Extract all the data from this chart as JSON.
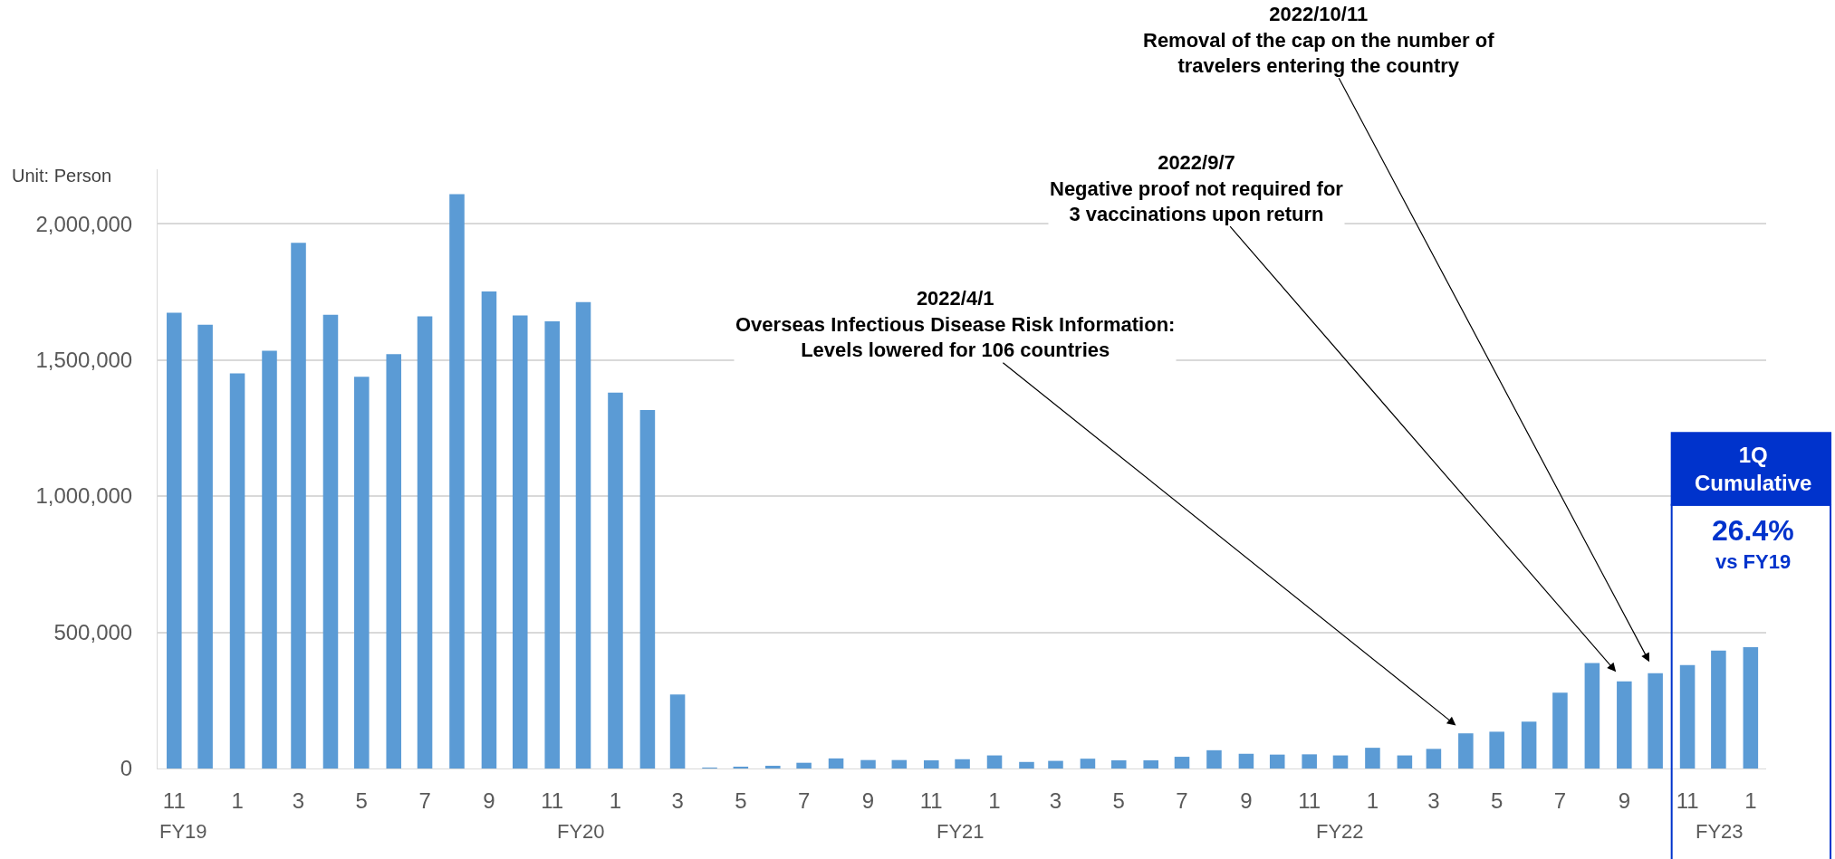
{
  "chart_data": {
    "type": "bar",
    "ylabel": "Unit: Person",
    "x": [
      "2018-11",
      "2018-12",
      "2019-01",
      "2019-02",
      "2019-03",
      "2019-04",
      "2019-05",
      "2019-06",
      "2019-07",
      "2019-08",
      "2019-09",
      "2019-10",
      "2019-11",
      "2019-12",
      "2020-01",
      "2020-02",
      "2020-03",
      "2020-04",
      "2020-05",
      "2020-06",
      "2020-07",
      "2020-08",
      "2020-09",
      "2020-10",
      "2020-11",
      "2020-12",
      "2021-01",
      "2021-02",
      "2021-03",
      "2021-04",
      "2021-05",
      "2021-06",
      "2021-07",
      "2021-08",
      "2021-09",
      "2021-10",
      "2021-11",
      "2021-12",
      "2022-01",
      "2022-02",
      "2022-03",
      "2022-04",
      "2022-05",
      "2022-06",
      "2022-07",
      "2022-08",
      "2022-09",
      "2022-10",
      "2022-11",
      "2022-12",
      "2023-01"
    ],
    "values": [
      1673000,
      1629000,
      1451000,
      1534000,
      1930000,
      1666000,
      1438000,
      1521000,
      1660000,
      2109000,
      1751000,
      1663000,
      1642000,
      1712000,
      1380000,
      1316000,
      272000,
      3000,
      6000,
      10000,
      21000,
      37000,
      31000,
      31000,
      30000,
      34000,
      48000,
      24000,
      28000,
      36000,
      30000,
      30000,
      43000,
      67000,
      54000,
      51000,
      52000,
      48000,
      76000,
      48000,
      72000,
      129000,
      135000,
      172000,
      278000,
      387000,
      320000,
      350000,
      380000,
      433000,
      445000
    ],
    "color": "#5b9bd5",
    "xlim": [
      "2018-10-16",
      "2023-01-16"
    ],
    "xticks": [
      {
        "value": "2018-11",
        "label": "11"
      },
      {
        "value": "2019-01",
        "label": "1"
      },
      {
        "value": "2019-03",
        "label": "3"
      },
      {
        "value": "2019-05",
        "label": "5"
      },
      {
        "value": "2019-07",
        "label": "7"
      },
      {
        "value": "2019-09",
        "label": "9"
      },
      {
        "value": "2019-11",
        "label": "11"
      },
      {
        "value": "2020-01",
        "label": "1"
      },
      {
        "value": "2020-03",
        "label": "3"
      },
      {
        "value": "2020-05",
        "label": "5"
      },
      {
        "value": "2020-07",
        "label": "7"
      },
      {
        "value": "2020-09",
        "label": "9"
      },
      {
        "value": "2020-11",
        "label": "11"
      },
      {
        "value": "2021-01",
        "label": "1"
      },
      {
        "value": "2021-03",
        "label": "3"
      },
      {
        "value": "2021-05",
        "label": "5"
      },
      {
        "value": "2021-07",
        "label": "7"
      },
      {
        "value": "2021-09",
        "label": "9"
      },
      {
        "value": "2021-11",
        "label": "11"
      },
      {
        "value": "2022-01",
        "label": "1"
      },
      {
        "value": "2022-03",
        "label": "3"
      },
      {
        "value": "2022-05",
        "label": "5"
      },
      {
        "value": "2022-07",
        "label": "7"
      },
      {
        "value": "2022-09",
        "label": "9"
      },
      {
        "value": "2022-11",
        "label": "11"
      },
      {
        "value": "2023-01",
        "label": "1"
      }
    ],
    "ylim": [
      0,
      2200000
    ],
    "yticks": [
      {
        "value": 0,
        "label": "0"
      },
      {
        "value": 500000,
        "label": "500,000"
      },
      {
        "value": 1000000,
        "label": "1,000,000"
      },
      {
        "value": 1500000,
        "label": "1,500,000"
      },
      {
        "value": 2000000,
        "label": "2,000,000"
      }
    ],
    "grid": "y",
    "annotations": [
      "FY19",
      "FY20",
      "FY21",
      "FY22",
      "FY23",
      "1Q\nCumulative",
      "26.4%",
      "vs FY19",
      {
        "text": "2022/4/1\nOverseas Infectious Disease Risk Information:\nLevels lowered for 106 countries",
        "x": "2022-04",
        "y": 129000
      },
      {
        "text": "2022/9/7\nNegative proof not required for\n3 vaccinations upon return",
        "x": "2022-09",
        "y": 320000
      },
      {
        "text": "2022/10/11\nRemoval of the cap on the number of\ntravelers entering the country",
        "x": "2022-10",
        "y": 350000
      }
    ]
  }
}
